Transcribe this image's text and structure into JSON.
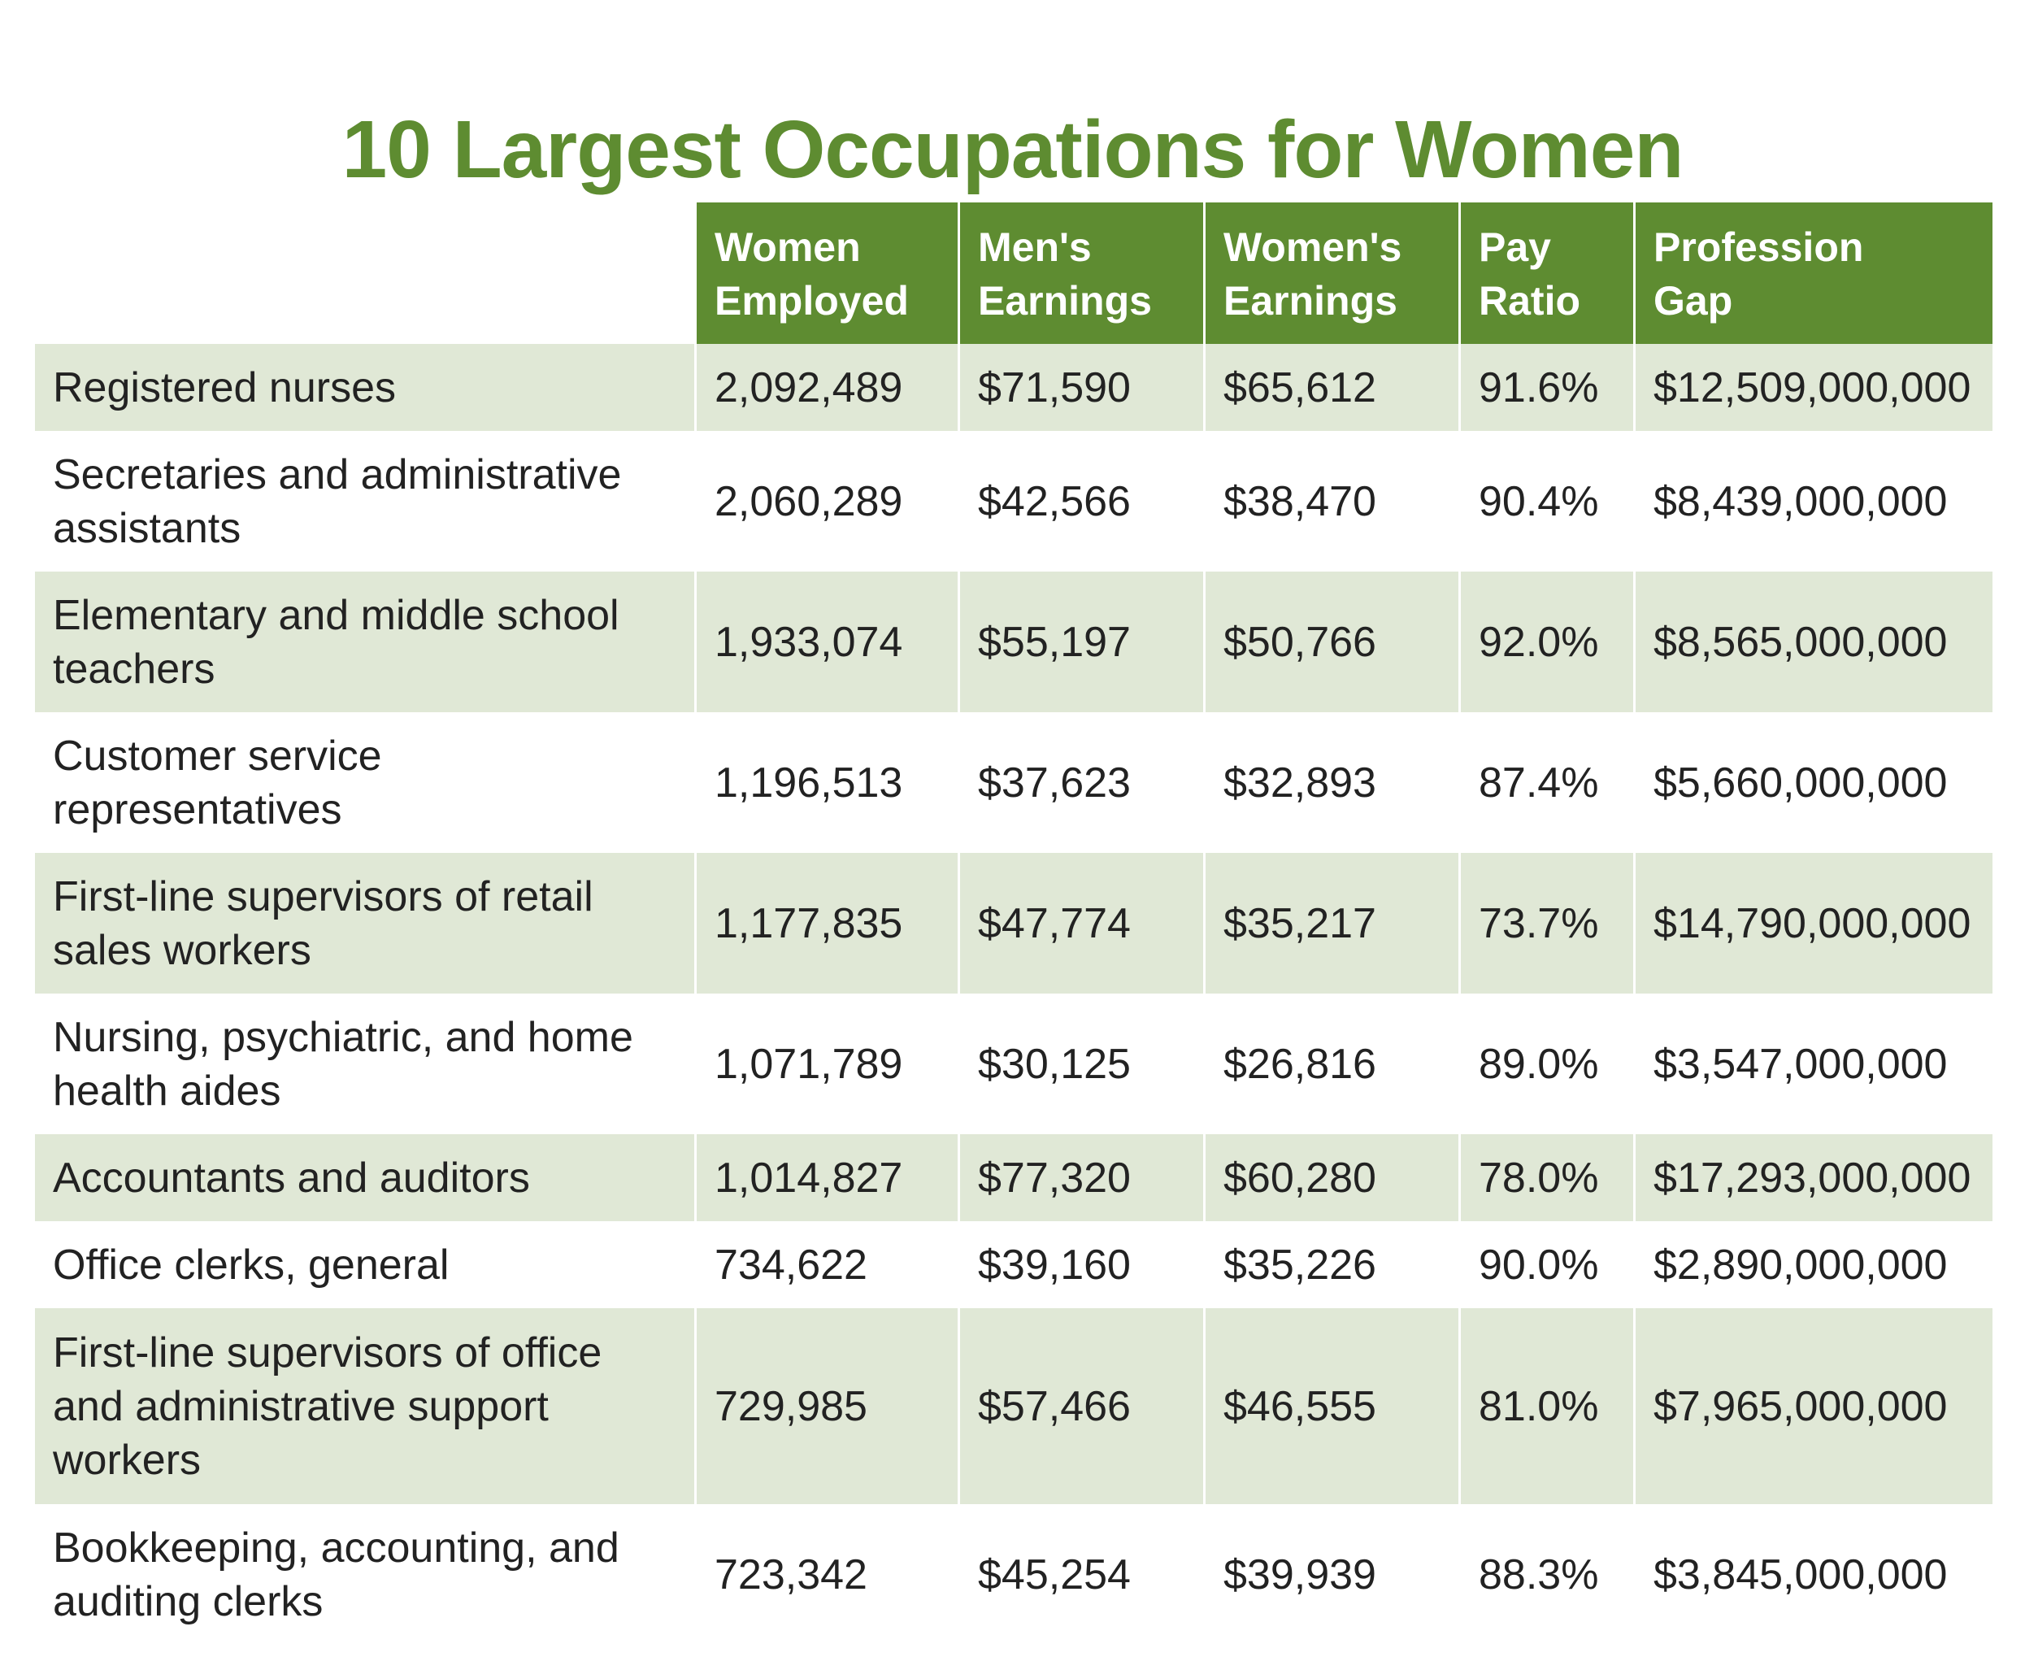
{
  "chart_data": {
    "type": "table",
    "title": "10 Largest Occupations for Women",
    "columns": [
      "",
      "Women Employed",
      "Men's Earnings",
      "Women's Earnings",
      "Pay Ratio",
      "Profession Gap"
    ],
    "header_lines": [
      [],
      [
        "Women",
        "Employed"
      ],
      [
        "Men's",
        "Earnings"
      ],
      [
        "Women's",
        "Earnings"
      ],
      [
        "Pay",
        "Ratio"
      ],
      [
        "Profession",
        "Gap"
      ]
    ],
    "rows": [
      {
        "occupation_lines": [
          "Registered nurses"
        ],
        "women_employed": "2,092,489",
        "mens_earnings": "$71,590",
        "womens_earnings": "$65,612",
        "pay_ratio": "91.6%",
        "profession_gap": "$12,509,000,000"
      },
      {
        "occupation_lines": [
          "Secretaries and administrative",
          "assistants"
        ],
        "women_employed": "2,060,289",
        "mens_earnings": "$42,566",
        "womens_earnings": "$38,470",
        "pay_ratio": "90.4%",
        "profession_gap": "$8,439,000,000"
      },
      {
        "occupation_lines": [
          "Elementary and middle school",
          "teachers"
        ],
        "women_employed": "1,933,074",
        "mens_earnings": "$55,197",
        "womens_earnings": "$50,766",
        "pay_ratio": "92.0%",
        "profession_gap": "$8,565,000,000"
      },
      {
        "occupation_lines": [
          "Customer service",
          "representatives"
        ],
        "women_employed": "1,196,513",
        "mens_earnings": "$37,623",
        "womens_earnings": "$32,893",
        "pay_ratio": "87.4%",
        "profession_gap": "$5,660,000,000"
      },
      {
        "occupation_lines": [
          "First-line supervisors of retail",
          "sales workers"
        ],
        "women_employed": "1,177,835",
        "mens_earnings": "$47,774",
        "womens_earnings": "$35,217",
        "pay_ratio": "73.7%",
        "profession_gap": "$14,790,000,000"
      },
      {
        "occupation_lines": [
          "Nursing, psychiatric, and home",
          "health aides"
        ],
        "women_employed": "1,071,789",
        "mens_earnings": "$30,125",
        "womens_earnings": "$26,816",
        "pay_ratio": "89.0%",
        "profession_gap": "$3,547,000,000"
      },
      {
        "occupation_lines": [
          "Accountants and auditors"
        ],
        "women_employed": "1,014,827",
        "mens_earnings": "$77,320",
        "womens_earnings": "$60,280",
        "pay_ratio": "78.0%",
        "profession_gap": "$17,293,000,000"
      },
      {
        "occupation_lines": [
          "Office clerks, general"
        ],
        "women_employed": "734,622",
        "mens_earnings": "$39,160",
        "womens_earnings": "$35,226",
        "pay_ratio": "90.0%",
        "profession_gap": "$2,890,000,000"
      },
      {
        "occupation_lines": [
          "First-line supervisors of office",
          "and administrative support",
          "workers"
        ],
        "women_employed": "729,985",
        "mens_earnings": "$57,466",
        "womens_earnings": "$46,555",
        "pay_ratio": "81.0%",
        "profession_gap": "$7,965,000,000"
      },
      {
        "occupation_lines": [
          "Bookkeeping, accounting, and",
          "auditing clerks"
        ],
        "women_employed": "723,342",
        "mens_earnings": "$45,254",
        "womens_earnings": "$39,939",
        "pay_ratio": "88.3%",
        "profession_gap": "$3,845,000,000"
      }
    ]
  },
  "colors": {
    "title": "#5e8c31",
    "header_background": "#5e8c31",
    "header_text": "#ffffff",
    "shaded_row": "#e0e8d6",
    "plain_row": "#ffffff",
    "body_text": "#222222"
  }
}
